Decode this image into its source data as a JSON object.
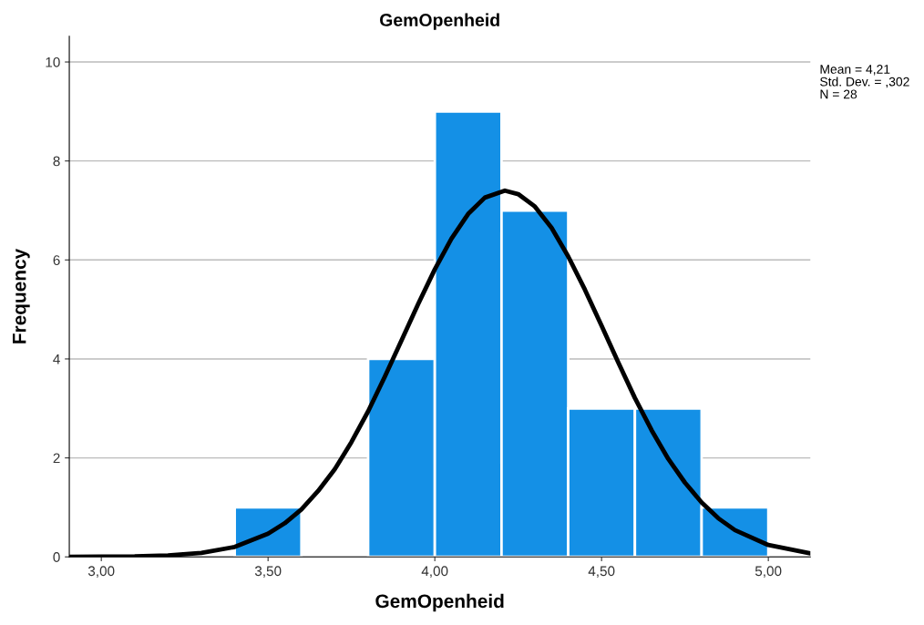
{
  "chart_data": {
    "type": "histogram",
    "title": "GemOpenheid",
    "xlabel": "GemOpenheid",
    "ylabel": "Frequency",
    "series": [
      {
        "type": "histogram",
        "color": "#1490e6",
        "bins": [
          3.4,
          3.6,
          3.8,
          4.0,
          4.2,
          4.4,
          4.6,
          4.8,
          5.0
        ],
        "values": [
          1,
          0,
          4,
          9,
          7,
          3,
          3,
          1
        ]
      },
      {
        "type": "line",
        "color": "#000000",
        "x": [
          2.904,
          3.1,
          3.2,
          3.3,
          3.4,
          3.5,
          3.55,
          3.6,
          3.65,
          3.7,
          3.75,
          3.8,
          3.85,
          3.9,
          3.95,
          4.0,
          4.05,
          4.1,
          4.15,
          4.21,
          4.25,
          4.3,
          4.35,
          4.4,
          4.45,
          4.5,
          4.55,
          4.6,
          4.65,
          4.7,
          4.75,
          4.8,
          4.85,
          4.9,
          5.0,
          5.126
        ],
        "values": [
          0.0,
          0.01,
          0.03,
          0.08,
          0.2,
          0.47,
          0.68,
          0.96,
          1.33,
          1.77,
          2.32,
          2.94,
          3.64,
          4.37,
          5.11,
          5.81,
          6.43,
          6.93,
          7.26,
          7.4,
          7.33,
          7.08,
          6.65,
          6.07,
          5.4,
          4.67,
          3.93,
          3.21,
          2.56,
          1.98,
          1.5,
          1.1,
          0.78,
          0.54,
          0.24,
          0.07
        ]
      }
    ],
    "xlim": [
      2.904,
      5.126
    ],
    "ylim": [
      0,
      10.52
    ],
    "xticks": [
      {
        "value": 3.0,
        "label": "3,00"
      },
      {
        "value": 3.5,
        "label": "3,50"
      },
      {
        "value": 4.0,
        "label": "4,00"
      },
      {
        "value": 4.5,
        "label": "4,50"
      },
      {
        "value": 5.0,
        "label": "5,00"
      }
    ],
    "yticks": [
      0,
      2,
      4,
      6,
      8,
      10
    ],
    "grid": "y",
    "line_style": "solid",
    "marker": "none",
    "annotations": [
      "Mean = 4,21",
      "Std. Dev. = ,302",
      "N = 28"
    ]
  }
}
